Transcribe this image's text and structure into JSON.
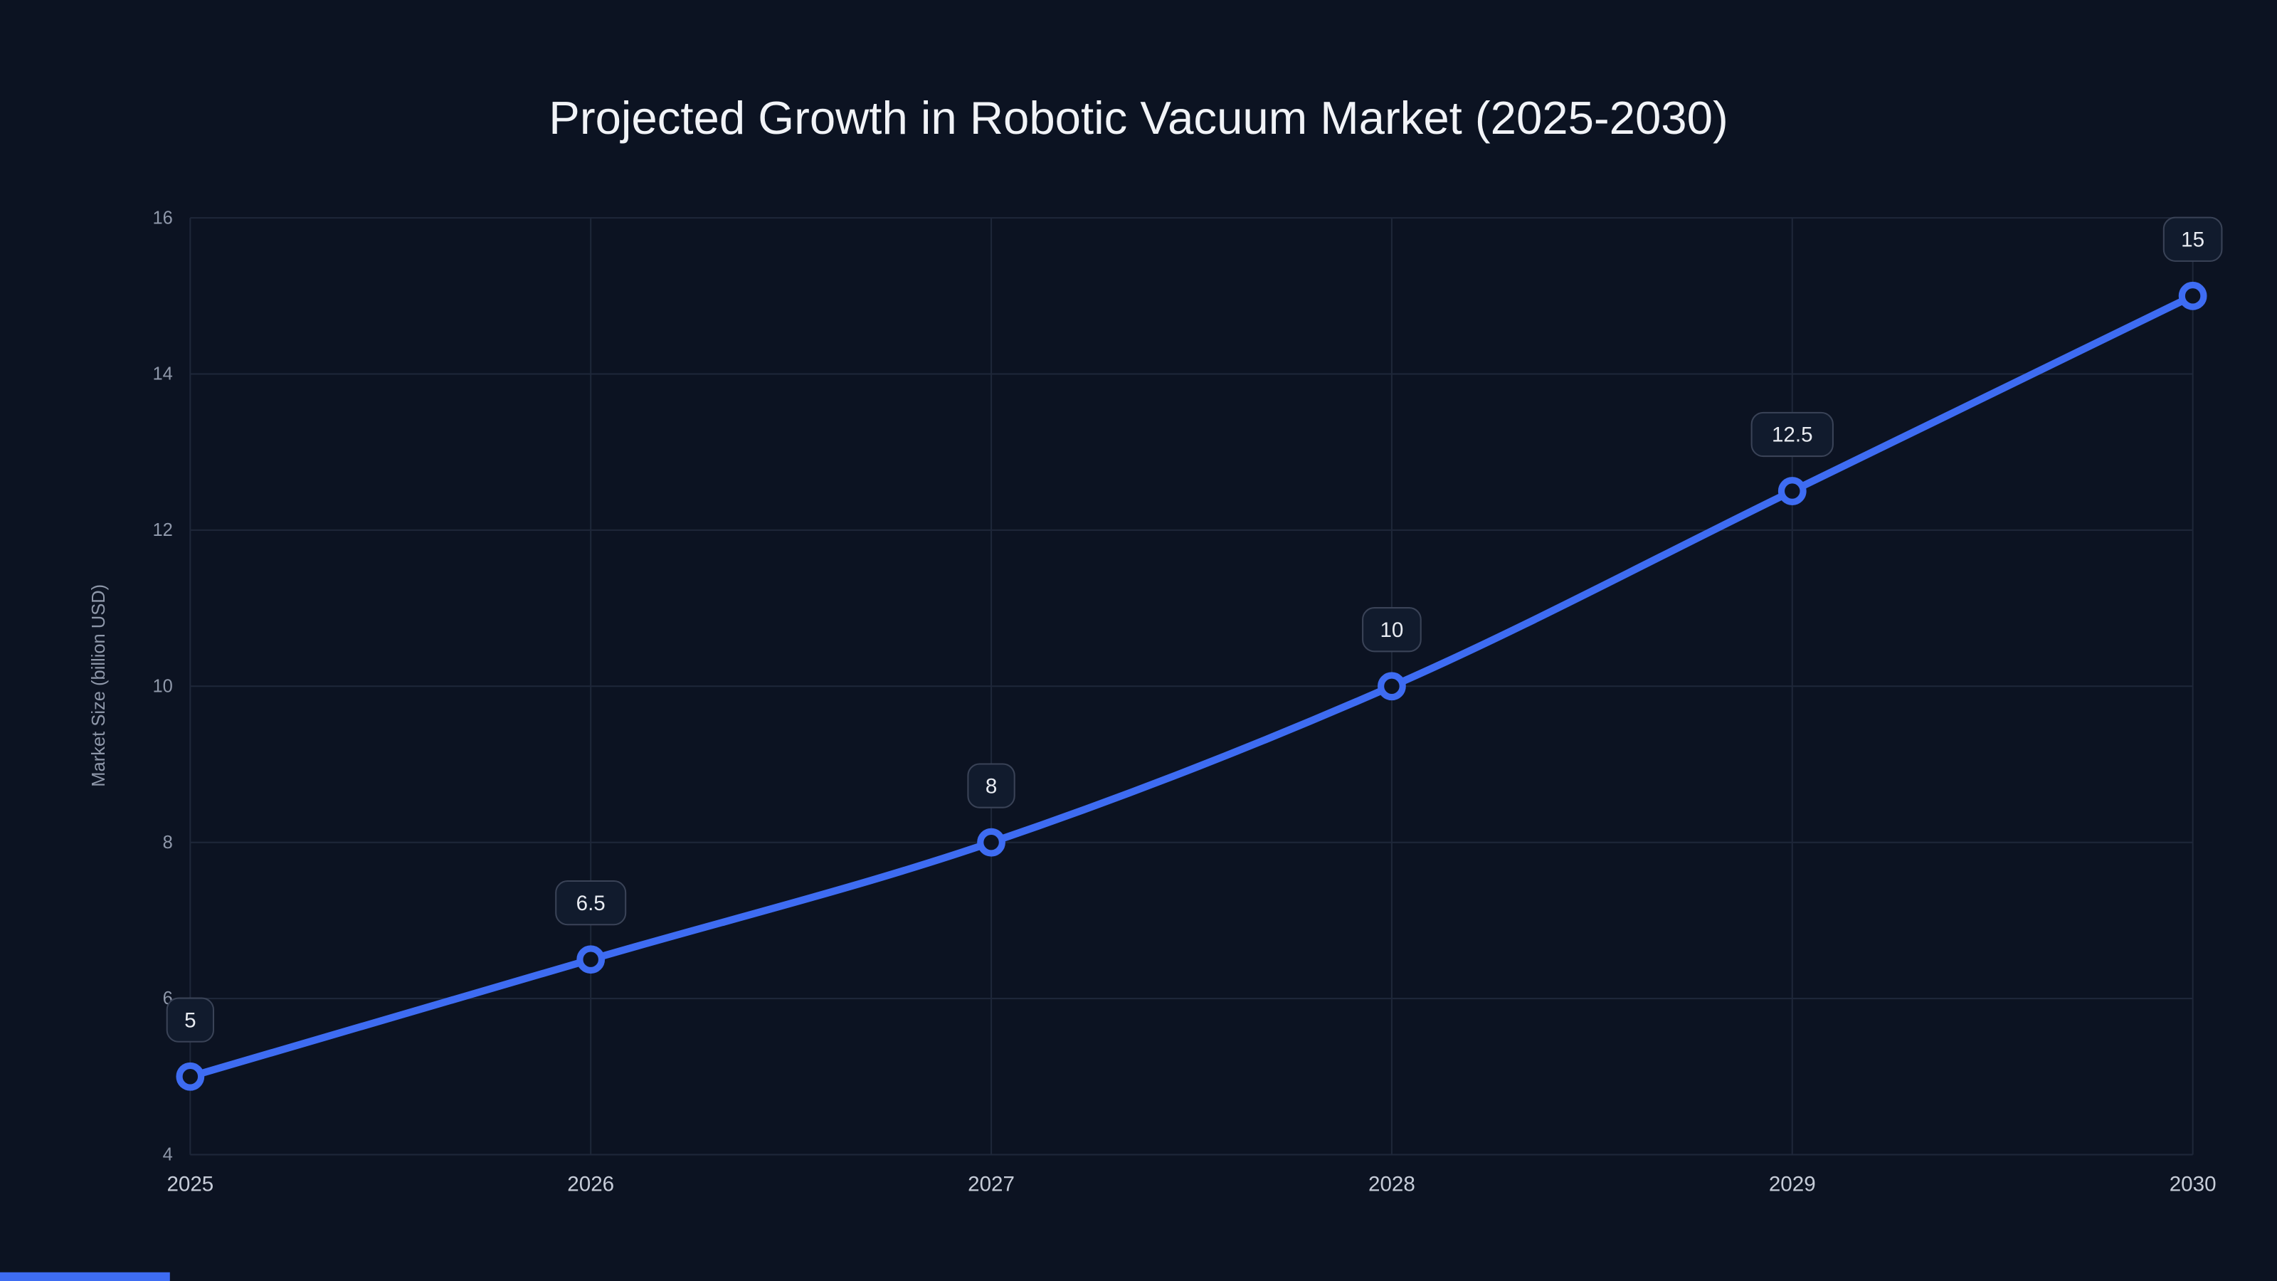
{
  "page": {
    "background": "#0c1322"
  },
  "chart_data": {
    "type": "line",
    "title": "Projected Growth in Robotic Vacuum Market (2025-2030)",
    "xlabel": "",
    "ylabel": "Market Size (billion USD)",
    "categories": [
      "2025",
      "2026",
      "2027",
      "2028",
      "2029",
      "2030"
    ],
    "series": [
      {
        "name": "Market Size",
        "values": [
          5,
          6.5,
          8,
          10,
          12.5,
          15
        ]
      }
    ],
    "point_labels": [
      "5",
      "6.5",
      "8",
      "10",
      "12.5",
      "15"
    ],
    "y_ticks": [
      4,
      6,
      8,
      10,
      12,
      14,
      16
    ],
    "ylim": [
      4,
      16
    ],
    "grid": true,
    "legend_position": "none",
    "colors": {
      "line": "#3e6cf2",
      "marker_fill": "#0c1322",
      "marker_stroke": "#3e6cf2",
      "grid": "#1e2739",
      "label_bg": "#111b2d",
      "label_border": "#3a4357",
      "label_text": "#e8ebf1",
      "y_tick_text": "#8f98aa",
      "x_tick_text": "#c6ccd8",
      "title_text": "#f1f3f7",
      "accent_bar": "#3e6cf2"
    }
  }
}
